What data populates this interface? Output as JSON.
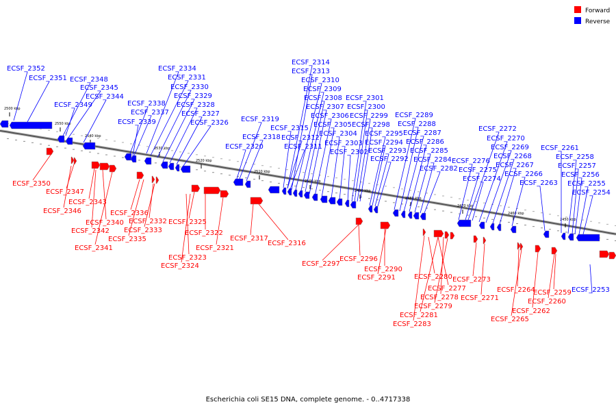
{
  "legend": [
    {
      "label": "Forward",
      "color": "#ff0000"
    },
    {
      "label": "Reverse",
      "color": "#0000ff"
    }
  ],
  "caption": "Escherichia coli SE15 DNA, complete genome. - 0..4717338",
  "backbone": {
    "start_kbp": 2500,
    "end_kbp": 2450
  },
  "tick_labels": [
    "2500 kbp",
    "2550 kbp",
    "2540 kbp",
    "2530 kbp",
    "2520 kbp",
    "2510 kbp",
    "2500 kbp",
    "2490 kbp",
    "2480 kbp",
    "2470 kbp",
    "2460 kbp",
    "2450 kbp"
  ],
  "reverse_genes": [
    "ECSF_2352",
    "ECSF_2351",
    "ECSF_2348",
    "ECSF_2345",
    "ECSF_2349",
    "ECSF_2344",
    "ECSF_2334",
    "ECSF_2331",
    "ECSF_2330",
    "ECSF_2329",
    "ECSF_2328",
    "ECSF_2327",
    "ECSF_2326",
    "ECSF_2338",
    "ECSF_2337",
    "ECSF_2339",
    "ECSF_2319",
    "ECSF_2318",
    "ECSF_2320",
    "ECSF_2314",
    "ECSF_2313",
    "ECSF_2310",
    "ECSF_2309",
    "ECSF_2308",
    "ECSF_2307",
    "ECSF_2306",
    "ECSF_2305",
    "ECSF_2304",
    "ECSF_2303",
    "ECSF_2302",
    "ECSF_2315",
    "ECSF_2312",
    "ECSF_2311",
    "ECSF_2301",
    "ECSF_2300",
    "ECSF_2299",
    "ECSF_2298",
    "ECSF_2295",
    "ECSF_2294",
    "ECSF_2293",
    "ECSF_2292",
    "ECSF_2289",
    "ECSF_2288",
    "ECSF_2287",
    "ECSF_2286",
    "ECSF_2285",
    "ECSF_2284",
    "ECSF_2282",
    "ECSF_2272",
    "ECSF_2270",
    "ECSF_2269",
    "ECSF_2268",
    "ECSF_2267",
    "ECSF_2266",
    "ECSF_2276",
    "ECSF_2275",
    "ECSF_2274",
    "ECSF_2263",
    "ECSF_2261",
    "ECSF_2258",
    "ECSF_2257",
    "ECSF_2256",
    "ECSF_2255",
    "ECSF_2254",
    "ECSF_2253"
  ],
  "forward_genes": [
    "ECSF_2350",
    "ECSF_2347",
    "ECSF_2346",
    "ECSF_2343",
    "ECSF_2340",
    "ECSF_2342",
    "ECSF_2341",
    "ECSF_2336",
    "ECSF_2332",
    "ECSF_2333",
    "ECSF_2335",
    "ECSF_2325",
    "ECSF_2322",
    "ECSF_2321",
    "ECSF_2323",
    "ECSF_2324",
    "ECSF_2317",
    "ECSF_2316",
    "ECSF_2297",
    "ECSF_2296",
    "ECSF_2290",
    "ECSF_2291",
    "ECSF_2280",
    "ECSF_2277",
    "ECSF_2278",
    "ECSF_2279",
    "ECSF_2281",
    "ECSF_2283",
    "ECSF_2273",
    "ECSF_2271",
    "ECSF_2264",
    "ECSF_2265",
    "ECSF_2262",
    "ECSF_2260",
    "ECSF_2259"
  ]
}
